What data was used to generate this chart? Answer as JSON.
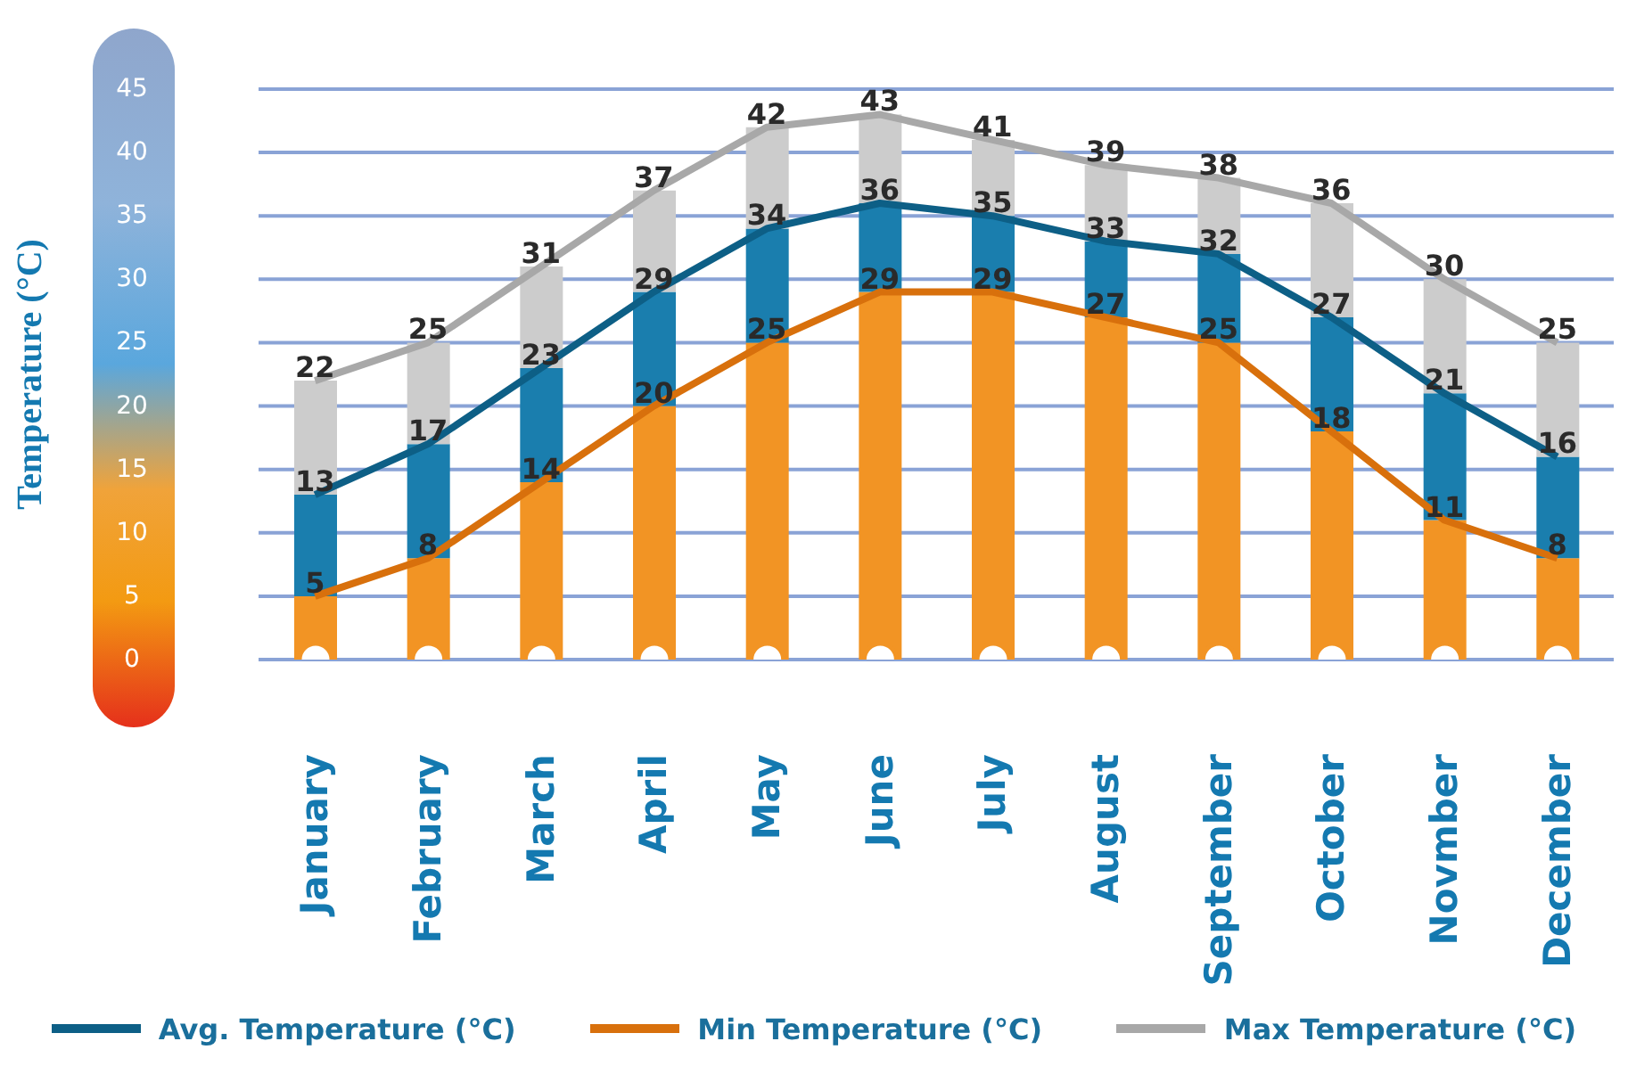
{
  "chart_data": {
    "type": "bar",
    "stacked": true,
    "ylabel": "Temperature (°C)",
    "categories": [
      "January",
      "February",
      "March",
      "April",
      "May",
      "June",
      "July",
      "August",
      "September",
      "October",
      "Novmber",
      "December"
    ],
    "ylim": [
      0,
      45
    ],
    "yticks": [
      0,
      5,
      10,
      15,
      20,
      25,
      30,
      35,
      40,
      45
    ],
    "grid": "y",
    "legend": "bottom",
    "series": [
      {
        "color": "#f29424",
        "values": [
          5,
          8,
          14,
          20,
          25,
          29,
          29,
          27,
          25,
          18,
          11,
          8
        ]
      },
      {
        "color": "#1a7eae",
        "values": [
          8,
          9,
          9,
          9,
          9,
          7,
          6,
          6,
          7,
          9,
          10,
          8
        ]
      },
      {
        "color": "#cccccc",
        "values": [
          9,
          8,
          8,
          8,
          8,
          7,
          6,
          6,
          6,
          9,
          9,
          9
        ]
      },
      {
        "type": "line",
        "name": "Max Temperature (°C)",
        "color": "#a8a8a8",
        "values": [
          22,
          25,
          31,
          37,
          42,
          43,
          41,
          39,
          38,
          36,
          30,
          25
        ],
        "value_labels": [
          "22",
          "25",
          "31",
          "37",
          "42",
          "43",
          "41",
          "39",
          "38",
          "36",
          "30",
          "25"
        ]
      },
      {
        "type": "line",
        "name": "Avg. Temperature (°C)",
        "color": "#0d5f86",
        "values": [
          13,
          17,
          23,
          29,
          34,
          36,
          35,
          33,
          32,
          27,
          21,
          16
        ],
        "value_labels": [
          "13",
          "17",
          "23",
          "29",
          "34",
          "36",
          "35",
          "33",
          "32",
          "27",
          "21",
          "16"
        ]
      },
      {
        "type": "line",
        "name": "Min Temperature (°C)",
        "color": "#d8700c",
        "values": [
          5,
          8,
          14,
          20,
          25,
          29,
          29,
          27,
          25,
          18,
          11,
          8
        ],
        "value_labels": [
          "5",
          "8",
          "14",
          "20",
          "25",
          "29",
          "29",
          "27",
          "25",
          "18",
          "11",
          "8"
        ]
      }
    ]
  }
}
